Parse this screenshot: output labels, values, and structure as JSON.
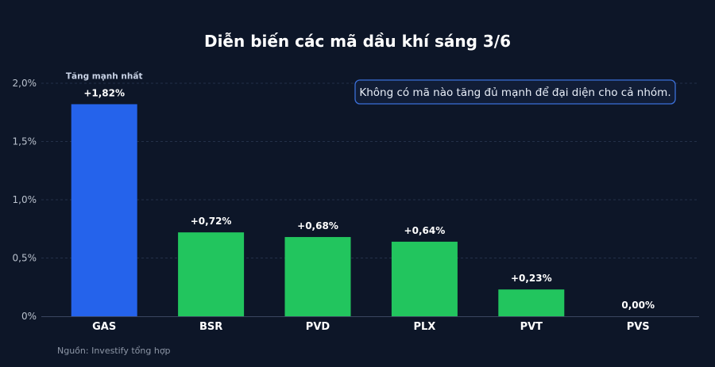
{
  "chart_data": {
    "type": "bar",
    "title": "Diễn biến các mã dầu khí sáng 3/6",
    "categories": [
      "GAS",
      "BSR",
      "PVD",
      "PLX",
      "PVT",
      "PVS"
    ],
    "values": [
      1.82,
      0.72,
      0.68,
      0.64,
      0.23,
      0.0
    ],
    "data_labels": [
      "+1,82%",
      "+0,72%",
      "+0,68%",
      "+0,64%",
      "+0,23%",
      "0,00%"
    ],
    "ylim": [
      0,
      2.0
    ],
    "yticks": [
      0,
      0.5,
      1.0,
      1.5,
      2.0
    ],
    "ytick_labels": [
      "0%",
      "0,5%",
      "1,0%",
      "1,5%",
      "2,0%"
    ],
    "xlabel": "",
    "ylabel": "",
    "grid": true,
    "highlight": {
      "category": "GAS",
      "label": "Tăng mạnh nhất",
      "color": "#2563eb"
    },
    "bar_color": "#22c55e",
    "annotation": "Không có mã nào tăng đủ mạnh để đại diện cho cả nhóm.",
    "source": "Nguồn: Investify tổng hợp"
  },
  "colors": {
    "background": "#0d1628",
    "grid": "#243049",
    "axis": "#3a4660",
    "note_border": "#3b6fd8",
    "note_fill": "#111d36"
  }
}
